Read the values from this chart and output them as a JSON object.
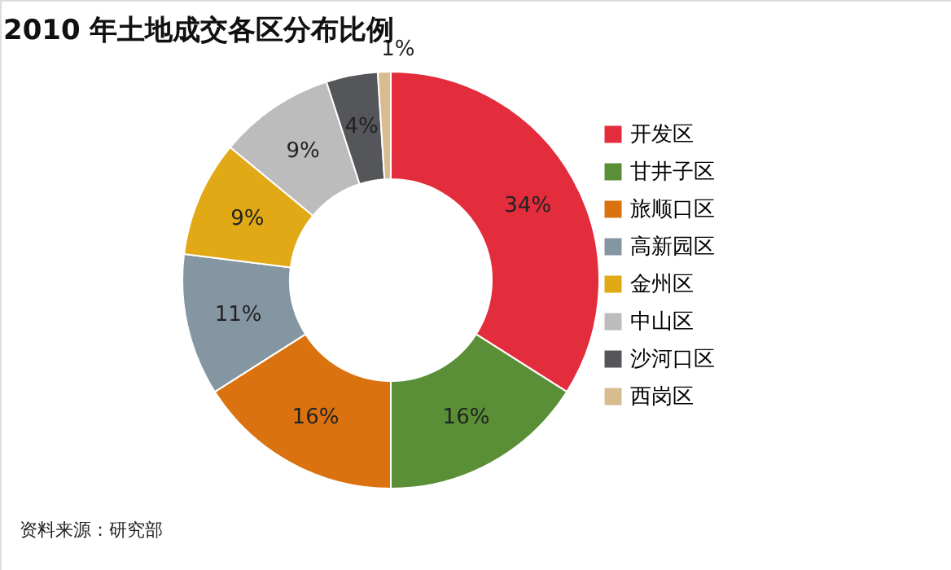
{
  "chart_data": {
    "type": "donut",
    "title": "2010 年土地成交各区分布比例",
    "categories": [
      "开发区",
      "甘井子区",
      "旅顺口区",
      "高新园区",
      "金州区",
      "中山区",
      "沙河口区",
      "西岗区"
    ],
    "values": [
      34,
      16,
      16,
      11,
      9,
      9,
      4,
      1
    ],
    "colors": [
      "#e32d3c",
      "#5a8f37",
      "#db7210",
      "#8596a3",
      "#e2a917",
      "#bcbcbc",
      "#545659",
      "#d8bb8f"
    ],
    "value_labels": [
      "34%",
      "16%",
      "16%",
      "11%",
      "9%",
      "9%",
      "4%",
      "1%"
    ],
    "legend": "right",
    "annotations": [
      "资料来源：研究部"
    ]
  }
}
